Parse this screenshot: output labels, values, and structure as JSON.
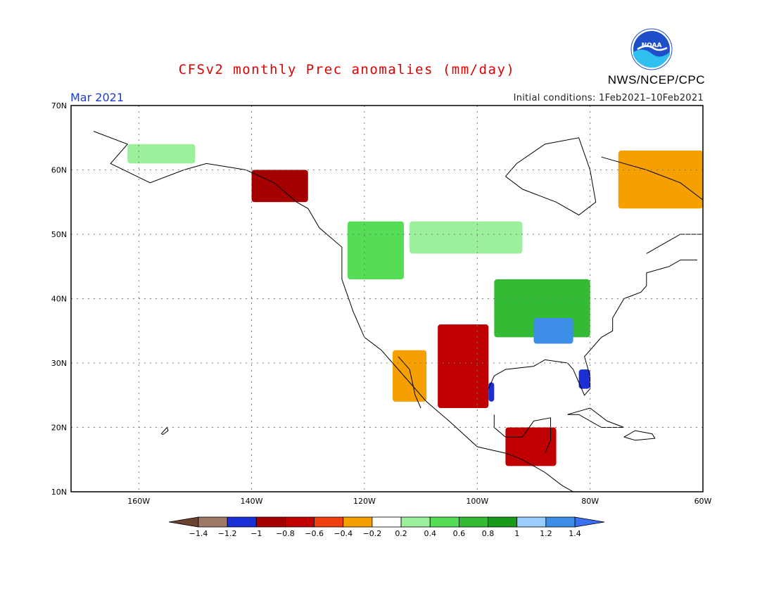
{
  "header": {
    "title": "CFSv2 monthly Prec anomalies (mm/day)",
    "agency": "NWS/NCEP/CPC",
    "period": "Mar 2021",
    "initial_conditions": "Initial conditions: 1Feb2021–10Feb2021",
    "logo_text": "NOAA"
  },
  "map": {
    "lon_range": [
      -172,
      -60
    ],
    "lat_range": [
      10,
      70
    ],
    "lat_labels": [
      "10N",
      "20N",
      "30N",
      "40N",
      "50N",
      "60N",
      "70N"
    ],
    "lon_labels": [
      "160W",
      "140W",
      "120W",
      "100W",
      "80W",
      "60W"
    ],
    "grid": true
  },
  "colorbar": {
    "labels": [
      "-1.4",
      "-1.2",
      "-1",
      "-0.8",
      "-0.6",
      "-0.4",
      "-0.2",
      "0.2",
      "0.4",
      "0.6",
      "0.8",
      "1",
      "1.2",
      "1.4"
    ],
    "colors": [
      "#a07868",
      "#1a2fd6",
      "#a50000",
      "#c00000",
      "#ee3f10",
      "#f5a000",
      "#ffffff",
      "#9cf09c",
      "#55dd55",
      "#33bb33",
      "#1a9a1a",
      "#99ccff",
      "#3c8ee6"
    ],
    "low_end_color": "#6b4330",
    "high_end_color": "#3a6ff0"
  },
  "anomaly_regions": [
    {
      "name": "Alaska interior wet",
      "color": "#9cf09c",
      "lat": [
        61,
        64
      ],
      "lon": [
        -162,
        -150
      ]
    },
    {
      "name": "Pacific Northwest wet",
      "color": "#55dd55",
      "lat": [
        43,
        52
      ],
      "lon": [
        -123,
        -113
      ]
    },
    {
      "name": "Northern Plains wet",
      "color": "#9cf09c",
      "lat": [
        47,
        52
      ],
      "lon": [
        -112,
        -92
      ]
    },
    {
      "name": "Ohio Valley wet",
      "color": "#33bb33",
      "lat": [
        34,
        43
      ],
      "lon": [
        -97,
        -80
      ]
    },
    {
      "name": "Tennessee Valley very wet",
      "color": "#3c8ee6",
      "lat": [
        33,
        37
      ],
      "lon": [
        -90,
        -83
      ]
    },
    {
      "name": "Southern Plains and Mexico dry",
      "color": "#c00000",
      "lat": [
        23,
        36
      ],
      "lon": [
        -107,
        -98
      ]
    },
    {
      "name": "South Texas coast wet",
      "color": "#1a2fd6",
      "lat": [
        24,
        27
      ],
      "lon": [
        -98,
        -97
      ]
    },
    {
      "name": "Florida wet",
      "color": "#1a2fd6",
      "lat": [
        26,
        29
      ],
      "lon": [
        -82,
        -80
      ]
    },
    {
      "name": "Labrador dry",
      "color": "#f5a000",
      "lat": [
        54,
        63
      ],
      "lon": [
        -75,
        -60
      ]
    },
    {
      "name": "Southeast Alaska dry",
      "color": "#a50000",
      "lat": [
        55,
        60
      ],
      "lon": [
        -140,
        -130
      ]
    },
    {
      "name": "Central America dry",
      "color": "#c00000",
      "lat": [
        14,
        20
      ],
      "lon": [
        -95,
        -86
      ]
    },
    {
      "name": "Baja California dry",
      "color": "#f5a000",
      "lat": [
        24,
        32
      ],
      "lon": [
        -115,
        -109
      ]
    }
  ]
}
